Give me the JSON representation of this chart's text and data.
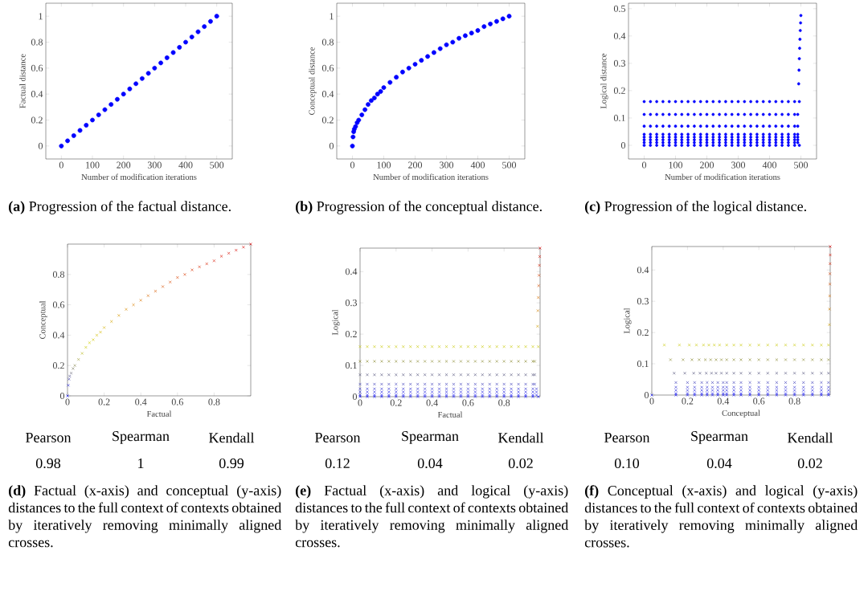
{
  "chart_data": [
    {
      "type": "scatter",
      "xlabel": "Number of modification iterations",
      "ylabel": "Factual distance",
      "marker": "circle",
      "xlim": [
        -50,
        550
      ],
      "ylim": [
        -0.1,
        1.1
      ],
      "xticks": [
        0,
        100,
        200,
        300,
        400,
        500
      ],
      "yticks": [
        0,
        0.2,
        0.4,
        0.6,
        0.8,
        1
      ],
      "annotations": [
        "**(a)** Progression of the factual distance."
      ],
      "series": [
        {
          "color": "#0000ff",
          "x": [
            0,
            20,
            40,
            60,
            80,
            100,
            120,
            140,
            160,
            180,
            200,
            220,
            240,
            260,
            280,
            300,
            320,
            340,
            360,
            380,
            400,
            420,
            440,
            460,
            480,
            500
          ],
          "values": [
            0,
            0.04,
            0.08,
            0.12,
            0.16,
            0.2,
            0.24,
            0.28,
            0.32,
            0.36,
            0.4,
            0.44,
            0.48,
            0.52,
            0.56,
            0.6,
            0.64,
            0.68,
            0.72,
            0.76,
            0.8,
            0.84,
            0.88,
            0.92,
            0.96,
            1
          ]
        }
      ]
    },
    {
      "type": "scatter",
      "xlabel": "Number of modification iterations",
      "ylabel": "Conceptual distance",
      "marker": "circle",
      "xlim": [
        -50,
        550
      ],
      "ylim": [
        -0.1,
        1.1
      ],
      "xticks": [
        0,
        100,
        200,
        300,
        400,
        500
      ],
      "yticks": [
        0,
        0.2,
        0.4,
        0.6,
        0.8,
        1
      ],
      "annotations": [
        "**(b)** Progression of the conceptual distance."
      ],
      "series": [
        {
          "color": "#0000ff",
          "x": [
            0,
            2,
            4,
            6,
            10,
            15,
            20,
            30,
            40,
            50,
            60,
            70,
            80,
            90,
            100,
            120,
            140,
            160,
            180,
            200,
            220,
            240,
            260,
            280,
            300,
            320,
            340,
            360,
            380,
            400,
            420,
            440,
            460,
            480,
            500
          ],
          "values": [
            0,
            0.07,
            0.11,
            0.13,
            0.15,
            0.18,
            0.2,
            0.24,
            0.28,
            0.32,
            0.35,
            0.37,
            0.4,
            0.42,
            0.45,
            0.49,
            0.53,
            0.57,
            0.6,
            0.63,
            0.66,
            0.69,
            0.72,
            0.75,
            0.78,
            0.8,
            0.83,
            0.85,
            0.87,
            0.89,
            0.92,
            0.94,
            0.96,
            0.98,
            1
          ]
        }
      ]
    },
    {
      "type": "scatter",
      "xlabel": "Number of modification iterations",
      "ylabel": "Logical distance",
      "marker": "circle",
      "xlim": [
        -50,
        550
      ],
      "ylim": [
        -0.05,
        0.52
      ],
      "xticks": [
        0,
        100,
        200,
        300,
        400,
        500
      ],
      "yticks": [
        0,
        0.1,
        0.2,
        0.3,
        0.4,
        0.5
      ],
      "annotations": [
        "**(c)** Progression of the logical distance."
      ],
      "series": [
        {
          "color": "#0000ff",
          "x": [
            0,
            20,
            40,
            60,
            80,
            100,
            120,
            140,
            160,
            180,
            200,
            220,
            240,
            260,
            280,
            300,
            320,
            340,
            360,
            380,
            400,
            420,
            440,
            460,
            480,
            495
          ],
          "values": [
            0.16,
            0.16,
            0.16,
            0.16,
            0.16,
            0.16,
            0.16,
            0.16,
            0.16,
            0.16,
            0.16,
            0.16,
            0.16,
            0.16,
            0.16,
            0.16,
            0.16,
            0.16,
            0.16,
            0.16,
            0.16,
            0.16,
            0.16,
            0.16,
            0.16,
            0.16
          ]
        },
        {
          "color": "#0000ff",
          "x": [
            0,
            20,
            40,
            60,
            80,
            100,
            120,
            140,
            160,
            180,
            200,
            220,
            240,
            260,
            280,
            300,
            320,
            340,
            360,
            380,
            400,
            420,
            440,
            460,
            480,
            490
          ],
          "values": [
            0.113,
            0.113,
            0.113,
            0.113,
            0.113,
            0.113,
            0.113,
            0.113,
            0.113,
            0.113,
            0.113,
            0.113,
            0.113,
            0.113,
            0.113,
            0.113,
            0.113,
            0.113,
            0.113,
            0.113,
            0.113,
            0.113,
            0.113,
            0.113,
            0.113,
            0.113
          ]
        },
        {
          "color": "#0000ff",
          "x": [
            0,
            20,
            40,
            60,
            80,
            100,
            120,
            140,
            160,
            180,
            200,
            220,
            240,
            260,
            280,
            300,
            320,
            340,
            360,
            380,
            400,
            420,
            440,
            460,
            480,
            490
          ],
          "values": [
            0.07,
            0.07,
            0.07,
            0.07,
            0.07,
            0.07,
            0.07,
            0.07,
            0.07,
            0.07,
            0.07,
            0.07,
            0.07,
            0.07,
            0.07,
            0.07,
            0.07,
            0.07,
            0.07,
            0.07,
            0.07,
            0.07,
            0.07,
            0.07,
            0.07,
            0.07
          ]
        },
        {
          "color": "#0000ff",
          "x": [
            0,
            20,
            40,
            60,
            80,
            100,
            120,
            140,
            160,
            180,
            200,
            220,
            240,
            260,
            280,
            300,
            320,
            340,
            360,
            380,
            400,
            420,
            440,
            460,
            480,
            490
          ],
          "values": [
            0.04,
            0.04,
            0.04,
            0.04,
            0.04,
            0.04,
            0.04,
            0.04,
            0.04,
            0.04,
            0.04,
            0.04,
            0.04,
            0.04,
            0.04,
            0.04,
            0.04,
            0.04,
            0.04,
            0.04,
            0.04,
            0.04,
            0.04,
            0.04,
            0.04,
            0.04
          ]
        },
        {
          "color": "#0000ff",
          "x": [
            0,
            20,
            40,
            60,
            80,
            100,
            120,
            140,
            160,
            180,
            200,
            220,
            240,
            260,
            280,
            300,
            320,
            340,
            360,
            380,
            400,
            420,
            440,
            460,
            480,
            490
          ],
          "values": [
            0.03,
            0.03,
            0.03,
            0.03,
            0.03,
            0.03,
            0.03,
            0.03,
            0.03,
            0.03,
            0.03,
            0.03,
            0.03,
            0.03,
            0.03,
            0.03,
            0.03,
            0.03,
            0.03,
            0.03,
            0.03,
            0.03,
            0.03,
            0.03,
            0.03,
            0.03
          ]
        },
        {
          "color": "#0000ff",
          "x": [
            0,
            20,
            40,
            60,
            80,
            100,
            120,
            140,
            160,
            180,
            200,
            220,
            240,
            260,
            280,
            300,
            320,
            340,
            360,
            380,
            400,
            420,
            440,
            460,
            480,
            490
          ],
          "values": [
            0.02,
            0.02,
            0.02,
            0.02,
            0.02,
            0.02,
            0.02,
            0.02,
            0.02,
            0.02,
            0.02,
            0.02,
            0.02,
            0.02,
            0.02,
            0.02,
            0.02,
            0.02,
            0.02,
            0.02,
            0.02,
            0.02,
            0.02,
            0.02,
            0.02,
            0.02
          ]
        },
        {
          "color": "#0000ff",
          "x": [
            0,
            20,
            40,
            60,
            80,
            100,
            120,
            140,
            160,
            180,
            200,
            220,
            240,
            260,
            280,
            300,
            320,
            340,
            360,
            380,
            400,
            420,
            440,
            460,
            480,
            490
          ],
          "values": [
            0.01,
            0.01,
            0.01,
            0.01,
            0.01,
            0.01,
            0.01,
            0.01,
            0.01,
            0.01,
            0.01,
            0.01,
            0.01,
            0.01,
            0.01,
            0.01,
            0.01,
            0.01,
            0.01,
            0.01,
            0.01,
            0.01,
            0.01,
            0.01,
            0.01,
            0.01
          ]
        },
        {
          "color": "#0000ff",
          "x": [
            0,
            20,
            40,
            60,
            80,
            100,
            120,
            140,
            160,
            180,
            200,
            220,
            240,
            260,
            280,
            300,
            320,
            340,
            360,
            380,
            400,
            420,
            440,
            460,
            480,
            495
          ],
          "values": [
            0,
            0,
            0,
            0,
            0,
            0,
            0,
            0,
            0,
            0,
            0,
            0,
            0,
            0,
            0,
            0,
            0,
            0,
            0,
            0,
            0,
            0,
            0,
            0,
            0,
            0
          ]
        },
        {
          "color": "#0000ff",
          "x": [
            493,
            494,
            495,
            496,
            497,
            498,
            499,
            500
          ],
          "values": [
            0.225,
            0.275,
            0.317,
            0.355,
            0.388,
            0.42,
            0.448,
            0.475
          ]
        }
      ]
    },
    {
      "type": "scatter",
      "xlabel": "Factual",
      "ylabel": "Conceptual",
      "marker": "cross",
      "xlim": [
        0,
        1
      ],
      "ylim": [
        0,
        1
      ],
      "xticks": [
        0,
        0.2,
        0.4,
        0.6,
        0.8
      ],
      "yticks": [
        0,
        0.2,
        0.4,
        0.6,
        0.8
      ],
      "annotations": [
        "Pearson",
        "Spearman",
        "Kendall",
        "0.98",
        "1",
        "0.99",
        "**(d)** Factual (x-axis) and conceptual (y-axis) distances to the full context of contexts obtained by iteratively removing minimally aligned crosses."
      ],
      "series": [
        {
          "x": [
            0,
            0.004,
            0.008,
            0.012,
            0.02,
            0.03,
            0.04,
            0.06,
            0.08,
            0.1,
            0.12,
            0.14,
            0.16,
            0.18,
            0.2,
            0.24,
            0.28,
            0.32,
            0.36,
            0.4,
            0.44,
            0.48,
            0.52,
            0.56,
            0.6,
            0.64,
            0.68,
            0.72,
            0.76,
            0.8,
            0.84,
            0.88,
            0.92,
            0.96,
            1
          ],
          "values": [
            0,
            0.07,
            0.11,
            0.13,
            0.15,
            0.18,
            0.2,
            0.24,
            0.28,
            0.32,
            0.35,
            0.37,
            0.4,
            0.42,
            0.45,
            0.49,
            0.53,
            0.57,
            0.6,
            0.63,
            0.66,
            0.69,
            0.72,
            0.75,
            0.78,
            0.8,
            0.83,
            0.85,
            0.87,
            0.89,
            0.92,
            0.94,
            0.96,
            0.98,
            1
          ],
          "colors": [
            "#0000ff",
            "#2828d8",
            "#4040a8",
            "#505090",
            "#686878",
            "#7a7a60",
            "#888850",
            "#a0a040",
            "#b8b820",
            "#c8c800",
            "#d0d000",
            "#d4c800",
            "#d4c000",
            "#d4b800",
            "#d4b000",
            "#d4a400",
            "#d89800",
            "#d88c00",
            "#d88000",
            "#d87400",
            "#d86800",
            "#d85c00",
            "#d85000",
            "#d84800",
            "#d84000",
            "#d83800",
            "#d83000",
            "#d82800",
            "#d82000",
            "#d81800",
            "#d81000",
            "#d80c00",
            "#d80800",
            "#d80400",
            "#d80000"
          ]
        }
      ]
    },
    {
      "type": "scatter",
      "xlabel": "Factual",
      "ylabel": "Logical",
      "marker": "cross",
      "xlim": [
        0,
        1
      ],
      "ylim": [
        0,
        0.475
      ],
      "xticks": [
        0,
        0.2,
        0.4,
        0.6,
        0.8
      ],
      "yticks": [
        0,
        0.1,
        0.2,
        0.3,
        0.4
      ],
      "annotations": [
        "Pearson",
        "Spearman",
        "Kendall",
        "0.12",
        "0.04",
        "0.02",
        "**(e)** Factual (x-axis) and logical (y-axis) distances to the full context of contexts obtained by iteratively removing minimally aligned crosses."
      ],
      "series": [
        {
          "color": "#c8c800",
          "x": [
            0,
            0.04,
            0.08,
            0.12,
            0.16,
            0.2,
            0.24,
            0.28,
            0.32,
            0.36,
            0.4,
            0.44,
            0.48,
            0.52,
            0.56,
            0.6,
            0.64,
            0.68,
            0.72,
            0.76,
            0.8,
            0.84,
            0.88,
            0.92,
            0.96,
            0.99
          ],
          "values": [
            0.16,
            0.16,
            0.16,
            0.16,
            0.16,
            0.16,
            0.16,
            0.16,
            0.16,
            0.16,
            0.16,
            0.16,
            0.16,
            0.16,
            0.16,
            0.16,
            0.16,
            0.16,
            0.16,
            0.16,
            0.16,
            0.16,
            0.16,
            0.16,
            0.16,
            0.16
          ]
        },
        {
          "color": "#8a8a30",
          "x": [
            0,
            0.04,
            0.08,
            0.12,
            0.16,
            0.2,
            0.24,
            0.28,
            0.32,
            0.36,
            0.4,
            0.44,
            0.48,
            0.52,
            0.56,
            0.6,
            0.64,
            0.68,
            0.72,
            0.76,
            0.8,
            0.84,
            0.88,
            0.92,
            0.96,
            0.97
          ],
          "values": [
            0.113,
            0.113,
            0.113,
            0.113,
            0.113,
            0.113,
            0.113,
            0.113,
            0.113,
            0.113,
            0.113,
            0.113,
            0.113,
            0.113,
            0.113,
            0.113,
            0.113,
            0.113,
            0.113,
            0.113,
            0.113,
            0.113,
            0.113,
            0.113,
            0.113,
            0.113
          ]
        },
        {
          "color": "#505078",
          "x": [
            0,
            0.04,
            0.08,
            0.12,
            0.16,
            0.2,
            0.24,
            0.28,
            0.32,
            0.36,
            0.4,
            0.44,
            0.48,
            0.52,
            0.56,
            0.6,
            0.64,
            0.68,
            0.72,
            0.76,
            0.8,
            0.84,
            0.88,
            0.92,
            0.96,
            0.97
          ],
          "values": [
            0.07,
            0.07,
            0.07,
            0.07,
            0.07,
            0.07,
            0.07,
            0.07,
            0.07,
            0.07,
            0.07,
            0.07,
            0.07,
            0.07,
            0.07,
            0.07,
            0.07,
            0.07,
            0.07,
            0.07,
            0.07,
            0.07,
            0.07,
            0.07,
            0.07,
            0.07
          ]
        },
        {
          "color": "#3a3ab8",
          "x": [
            0,
            0.04,
            0.08,
            0.12,
            0.16,
            0.2,
            0.24,
            0.28,
            0.32,
            0.36,
            0.4,
            0.44,
            0.48,
            0.52,
            0.56,
            0.6,
            0.64,
            0.68,
            0.72,
            0.76,
            0.8,
            0.84,
            0.88,
            0.92,
            0.96,
            0.97
          ],
          "values": [
            0.04,
            0.04,
            0.04,
            0.04,
            0.04,
            0.04,
            0.04,
            0.04,
            0.04,
            0.04,
            0.04,
            0.04,
            0.04,
            0.04,
            0.04,
            0.04,
            0.04,
            0.04,
            0.04,
            0.04,
            0.04,
            0.04,
            0.04,
            0.04,
            0.04,
            0.04
          ]
        },
        {
          "color": "#2a2ad0",
          "x": [
            0,
            0.04,
            0.08,
            0.12,
            0.16,
            0.2,
            0.24,
            0.28,
            0.32,
            0.36,
            0.4,
            0.44,
            0.48,
            0.52,
            0.56,
            0.6,
            0.64,
            0.68,
            0.72,
            0.76,
            0.8,
            0.84,
            0.88,
            0.92,
            0.96,
            0.98
          ],
          "values": [
            0.025,
            0.025,
            0.025,
            0.025,
            0.025,
            0.025,
            0.025,
            0.025,
            0.025,
            0.025,
            0.025,
            0.025,
            0.025,
            0.025,
            0.025,
            0.025,
            0.025,
            0.025,
            0.025,
            0.025,
            0.025,
            0.025,
            0.025,
            0.025,
            0.025,
            0.025
          ]
        },
        {
          "color": "#2020e0",
          "x": [
            0,
            0.04,
            0.08,
            0.12,
            0.16,
            0.2,
            0.24,
            0.28,
            0.32,
            0.36,
            0.4,
            0.44,
            0.48,
            0.52,
            0.56,
            0.6,
            0.64,
            0.68,
            0.72,
            0.76,
            0.8,
            0.84,
            0.88,
            0.92,
            0.96,
            0.98
          ],
          "values": [
            0.015,
            0.015,
            0.015,
            0.015,
            0.015,
            0.015,
            0.015,
            0.015,
            0.015,
            0.015,
            0.015,
            0.015,
            0.015,
            0.015,
            0.015,
            0.015,
            0.015,
            0.015,
            0.015,
            0.015,
            0.015,
            0.015,
            0.015,
            0.015,
            0.015,
            0.015
          ]
        },
        {
          "color": "#1010f0",
          "x": [
            0,
            0.04,
            0.08,
            0.12,
            0.16,
            0.2,
            0.24,
            0.28,
            0.32,
            0.36,
            0.4,
            0.44,
            0.48,
            0.52,
            0.56,
            0.6,
            0.64,
            0.68,
            0.72,
            0.76,
            0.8,
            0.84,
            0.88,
            0.92,
            0.96,
            0.98
          ],
          "values": [
            0.005,
            0.005,
            0.005,
            0.005,
            0.005,
            0.005,
            0.005,
            0.005,
            0.005,
            0.005,
            0.005,
            0.005,
            0.005,
            0.005,
            0.005,
            0.005,
            0.005,
            0.005,
            0.005,
            0.005,
            0.005,
            0.005,
            0.005,
            0.005,
            0.005,
            0.005
          ]
        },
        {
          "color": "#0000ff",
          "x": [
            0,
            0.04,
            0.08,
            0.12,
            0.16,
            0.2,
            0.24,
            0.28,
            0.32,
            0.36,
            0.4,
            0.44,
            0.48,
            0.52,
            0.56,
            0.6,
            0.64,
            0.68,
            0.72,
            0.76,
            0.8,
            0.84,
            0.88,
            0.92,
            0.96,
            0.99
          ],
          "values": [
            0,
            0,
            0,
            0,
            0,
            0,
            0,
            0,
            0,
            0,
            0,
            0,
            0,
            0,
            0,
            0,
            0,
            0,
            0,
            0,
            0,
            0,
            0,
            0,
            0,
            0
          ]
        },
        {
          "x": [
            0.986,
            0.988,
            0.99,
            0.992,
            0.994,
            0.996,
            0.998,
            1
          ],
          "values": [
            0.225,
            0.275,
            0.317,
            0.355,
            0.388,
            0.42,
            0.448,
            0.475
          ],
          "colors": [
            "#d0a000",
            "#d08000",
            "#d87000",
            "#d85000",
            "#d84000",
            "#d82000",
            "#d81000",
            "#d80000"
          ]
        }
      ]
    },
    {
      "type": "scatter",
      "xlabel": "Conceptual",
      "ylabel": "Logical",
      "marker": "cross",
      "xlim": [
        0,
        1
      ],
      "ylim": [
        0,
        0.475
      ],
      "xticks": [
        0,
        0.2,
        0.4,
        0.6,
        0.8
      ],
      "yticks": [
        0,
        0.1,
        0.2,
        0.3,
        0.4
      ],
      "annotations": [
        "Pearson",
        "Spearman",
        "Kendall",
        "0.10",
        "0.04",
        "0.02",
        "**(f)** Conceptual (x-axis) and logical (y-axis) distances to the full context of contexts obtained by iteratively removing minimally aligned crosses."
      ],
      "series": [
        {
          "color": "#c8c800",
          "x": [
            0.07,
            0.155,
            0.21,
            0.25,
            0.29,
            0.32,
            0.35,
            0.38,
            0.42,
            0.46,
            0.5,
            0.55,
            0.6,
            0.65,
            0.7,
            0.75,
            0.8,
            0.85,
            0.9,
            0.95,
            0.99
          ],
          "values": [
            0.16,
            0.16,
            0.16,
            0.16,
            0.16,
            0.16,
            0.16,
            0.16,
            0.16,
            0.16,
            0.16,
            0.16,
            0.16,
            0.16,
            0.16,
            0.16,
            0.16,
            0.16,
            0.16,
            0.16,
            0.16
          ]
        },
        {
          "color": "#8a8a30",
          "x": [
            0.105,
            0.175,
            0.225,
            0.265,
            0.3,
            0.33,
            0.36,
            0.39,
            0.42,
            0.46,
            0.5,
            0.55,
            0.6,
            0.65,
            0.7,
            0.75,
            0.8,
            0.85,
            0.9,
            0.95,
            0.99
          ],
          "values": [
            0.113,
            0.113,
            0.113,
            0.113,
            0.113,
            0.113,
            0.113,
            0.113,
            0.113,
            0.113,
            0.113,
            0.113,
            0.113,
            0.113,
            0.113,
            0.113,
            0.113,
            0.113,
            0.113,
            0.113,
            0.113
          ]
        },
        {
          "color": "#505078",
          "x": [
            0.125,
            0.185,
            0.235,
            0.27,
            0.305,
            0.335,
            0.36,
            0.39,
            0.42,
            0.46,
            0.5,
            0.55,
            0.6,
            0.65,
            0.7,
            0.75,
            0.8,
            0.85,
            0.9,
            0.95,
            0.99
          ],
          "values": [
            0.07,
            0.07,
            0.07,
            0.07,
            0.07,
            0.07,
            0.07,
            0.07,
            0.07,
            0.07,
            0.07,
            0.07,
            0.07,
            0.07,
            0.07,
            0.07,
            0.07,
            0.07,
            0.07,
            0.07,
            0.07
          ]
        },
        {
          "color": "#3a3ab8",
          "x": [
            0.135,
            0.2,
            0.24,
            0.28,
            0.31,
            0.34,
            0.37,
            0.4,
            0.42,
            0.46,
            0.5,
            0.55,
            0.6,
            0.65,
            0.7,
            0.75,
            0.8,
            0.85,
            0.9,
            0.95,
            0.99
          ],
          "values": [
            0.04,
            0.04,
            0.04,
            0.04,
            0.04,
            0.04,
            0.04,
            0.04,
            0.04,
            0.04,
            0.04,
            0.04,
            0.04,
            0.04,
            0.04,
            0.04,
            0.04,
            0.04,
            0.04,
            0.04,
            0.04
          ]
        },
        {
          "color": "#2a2ad0",
          "x": [
            0.135,
            0.2,
            0.24,
            0.28,
            0.31,
            0.34,
            0.37,
            0.4,
            0.42,
            0.46,
            0.5,
            0.55,
            0.6,
            0.65,
            0.7,
            0.75,
            0.8,
            0.85,
            0.9,
            0.95,
            0.99
          ],
          "values": [
            0.025,
            0.025,
            0.025,
            0.025,
            0.025,
            0.025,
            0.025,
            0.025,
            0.025,
            0.025,
            0.025,
            0.025,
            0.025,
            0.025,
            0.025,
            0.025,
            0.025,
            0.025,
            0.025,
            0.025,
            0.025
          ]
        },
        {
          "color": "#2020e0",
          "x": [
            0.135,
            0.2,
            0.24,
            0.28,
            0.31,
            0.34,
            0.37,
            0.4,
            0.42,
            0.46,
            0.5,
            0.55,
            0.6,
            0.65,
            0.7,
            0.75,
            0.8,
            0.85,
            0.9,
            0.95,
            0.99
          ],
          "values": [
            0.015,
            0.015,
            0.015,
            0.015,
            0.015,
            0.015,
            0.015,
            0.015,
            0.015,
            0.015,
            0.015,
            0.015,
            0.015,
            0.015,
            0.015,
            0.015,
            0.015,
            0.015,
            0.015,
            0.015,
            0.015
          ]
        },
        {
          "color": "#1010f0",
          "x": [
            0.135,
            0.2,
            0.24,
            0.28,
            0.31,
            0.34,
            0.37,
            0.4,
            0.42,
            0.46,
            0.5,
            0.55,
            0.6,
            0.65,
            0.7,
            0.75,
            0.8,
            0.85,
            0.9,
            0.95,
            0.99
          ],
          "values": [
            0.005,
            0.005,
            0.005,
            0.005,
            0.005,
            0.005,
            0.005,
            0.005,
            0.005,
            0.005,
            0.005,
            0.005,
            0.005,
            0.005,
            0.005,
            0.005,
            0.005,
            0.005,
            0.005,
            0.005,
            0.005
          ]
        },
        {
          "color": "#0000ff",
          "x": [
            0,
            0.135,
            0.2,
            0.24,
            0.28,
            0.31,
            0.34,
            0.37,
            0.4,
            0.42,
            0.46,
            0.5,
            0.55,
            0.6,
            0.65,
            0.7,
            0.75,
            0.8,
            0.85,
            0.9,
            0.95,
            0.99
          ],
          "values": [
            0,
            0,
            0,
            0,
            0,
            0,
            0,
            0,
            0,
            0,
            0,
            0,
            0,
            0,
            0,
            0,
            0,
            0,
            0,
            0,
            0,
            0
          ]
        },
        {
          "x": [
            0.995,
            0.996,
            0.997,
            0.998,
            0.998,
            0.999,
            1,
            1
          ],
          "values": [
            0.225,
            0.275,
            0.317,
            0.355,
            0.388,
            0.42,
            0.448,
            0.475
          ],
          "colors": [
            "#d0a000",
            "#d08000",
            "#d87000",
            "#d85000",
            "#d84000",
            "#d82000",
            "#d81000",
            "#d80000"
          ]
        }
      ]
    }
  ]
}
